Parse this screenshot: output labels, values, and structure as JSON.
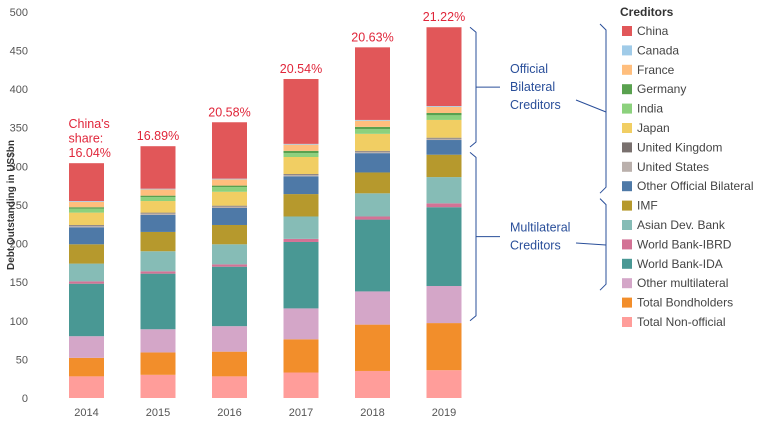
{
  "chart_data": {
    "type": "bar",
    "stacked": true,
    "categories": [
      "2014",
      "2015",
      "2016",
      "2017",
      "2018",
      "2019"
    ],
    "ylabel": "Debt Outstanding in US$bn",
    "ylim": [
      0,
      500
    ],
    "yticks": [
      0,
      50,
      100,
      150,
      200,
      250,
      300,
      350,
      400,
      450,
      500
    ],
    "grid": false,
    "legend_title": "Creditors",
    "legend_position": "right",
    "series": [
      {
        "name": "Total Non-official",
        "color": "#ff9d9a",
        "values": [
          28,
          30,
          28,
          33,
          35,
          36
        ]
      },
      {
        "name": "Total Bondholders",
        "color": "#f28e2b",
        "values": [
          24,
          29,
          32,
          43,
          60,
          61
        ]
      },
      {
        "name": "Other multilateral",
        "color": "#d4a6c8",
        "values": [
          28,
          30,
          33,
          40,
          43,
          48
        ]
      },
      {
        "name": "World Bank-IDA",
        "color": "#499894",
        "values": [
          68,
          72,
          77,
          86,
          93,
          102
        ]
      },
      {
        "name": "World Bank-IBRD",
        "color": "#d37295",
        "values": [
          3,
          3,
          3,
          4,
          4,
          5
        ]
      },
      {
        "name": "Asian Dev. Bank",
        "color": "#86bcb6",
        "values": [
          23,
          26,
          26,
          29,
          30,
          34
        ]
      },
      {
        "name": "IMF",
        "color": "#b6992d",
        "values": [
          25,
          25,
          25,
          29,
          27,
          29
        ]
      },
      {
        "name": "Other Official Bilateral",
        "color": "#4e79a7",
        "values": [
          22,
          22,
          22,
          23,
          25,
          19
        ]
      },
      {
        "name": "United States",
        "color": "#bab0ac",
        "values": [
          2,
          2,
          2,
          2,
          2,
          2
        ]
      },
      {
        "name": "United Kingdom",
        "color": "#79706e",
        "values": [
          1,
          1,
          1,
          1,
          1,
          1
        ]
      },
      {
        "name": "Japan",
        "color": "#f1ce63",
        "values": [
          16,
          15,
          18,
          22,
          22,
          23
        ]
      },
      {
        "name": "India",
        "color": "#8cd17d",
        "values": [
          5,
          5,
          6,
          5,
          6,
          6
        ]
      },
      {
        "name": "Germany",
        "color": "#59a14f",
        "values": [
          2,
          2,
          2,
          3,
          3,
          3
        ]
      },
      {
        "name": "France",
        "color": "#ffbe7d",
        "values": [
          7,
          8,
          8,
          8,
          8,
          8
        ]
      },
      {
        "name": "Canada",
        "color": "#a0cbe8",
        "values": [
          1,
          1,
          1,
          1,
          1,
          1
        ]
      },
      {
        "name": "China",
        "color": "#e15759",
        "values": [
          49,
          55,
          73,
          84,
          94,
          102
        ]
      }
    ],
    "legend_order": [
      "China",
      "Canada",
      "France",
      "Germany",
      "India",
      "Japan",
      "United Kingdom",
      "United States",
      "Other Official Bilateral",
      "IMF",
      "Asian Dev. Bank",
      "World Bank-IBRD",
      "World Bank-IDA",
      "Other multilateral",
      "Total Bondholders",
      "Total Non-official"
    ],
    "annotations": {
      "china_share": [
        "China's\nshare:\n16.04%",
        "16.89%",
        "20.58%",
        "20.54%",
        "20.63%",
        "21.22%"
      ],
      "groups": [
        {
          "label": "Official\nBilateral\nCreditors",
          "from": 325,
          "to": 480
        },
        {
          "label": "Multilateral\nCreditors",
          "from": 100,
          "to": 318
        }
      ]
    }
  }
}
